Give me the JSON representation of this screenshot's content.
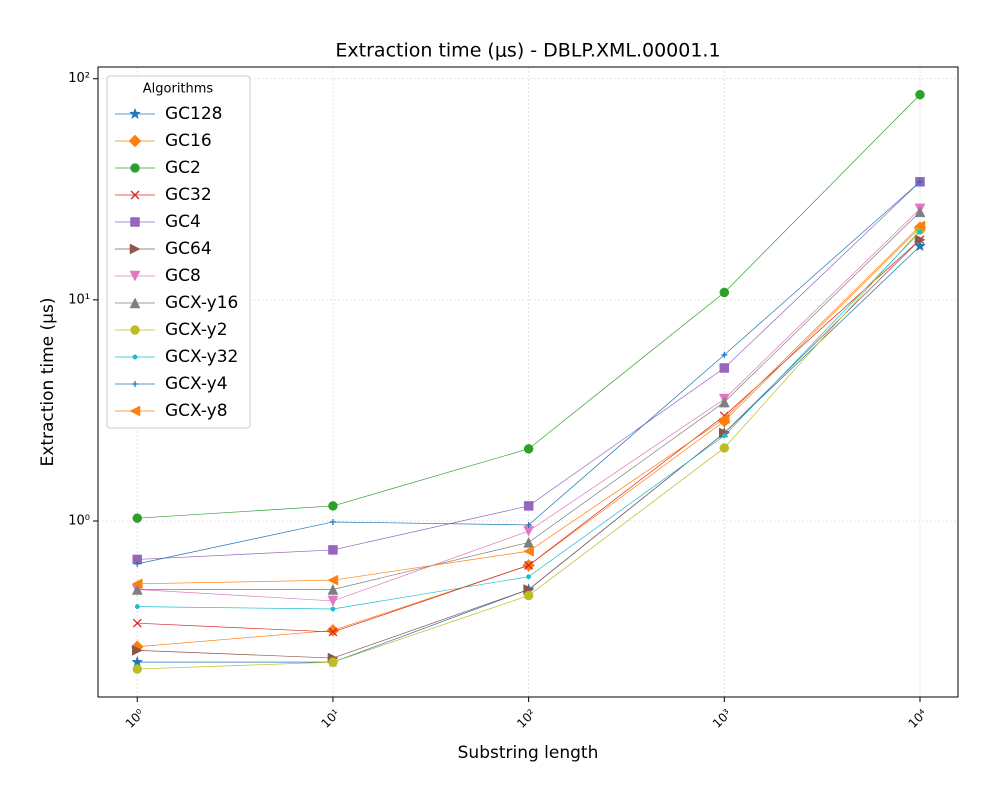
{
  "chart_data": {
    "type": "line",
    "title": "Extraction time (μs) - DBLP.XML.00001.1",
    "x_label": "Substring length",
    "y_label": "Extraction time (μs)",
    "x": [
      1,
      10,
      100,
      1000,
      10000
    ],
    "xlim": [
      0.63,
      15640
    ],
    "ylim": [
      0.16,
      113
    ],
    "xscale": "log",
    "yscale": "log",
    "xticks": [
      {
        "value": 1,
        "label": "10⁰"
      },
      {
        "value": 10,
        "label": "10¹"
      },
      {
        "value": 100,
        "label": "10²"
      },
      {
        "value": 1000,
        "label": "10³"
      },
      {
        "value": 10000,
        "label": "10⁴"
      }
    ],
    "yticks": [
      {
        "value": 1,
        "label": "10⁰"
      },
      {
        "value": 10,
        "label": "10¹"
      },
      {
        "value": 100,
        "label": "10²"
      }
    ],
    "grid": true,
    "legend_title": "Algorithms",
    "legend_loc": "upper left",
    "series": [
      {
        "name": "GC128",
        "color": "#1f77b4",
        "marker": "star",
        "values": [
          0.23,
          0.23,
          0.49,
          2.5,
          17.5
        ]
      },
      {
        "name": "GC16",
        "color": "#ff7f0e",
        "marker": "diamond",
        "values": [
          0.27,
          0.32,
          0.63,
          2.83,
          21.2
        ]
      },
      {
        "name": "GC2",
        "color": "#2ca02c",
        "marker": "circle",
        "values": [
          1.03,
          1.17,
          2.12,
          10.8,
          84.7
        ]
      },
      {
        "name": "GC32",
        "color": "#d62728",
        "marker": "x",
        "values": [
          0.345,
          0.315,
          0.63,
          2.99,
          18.7
        ]
      },
      {
        "name": "GC4",
        "color": "#9467bd",
        "marker": "square",
        "values": [
          0.67,
          0.74,
          1.17,
          4.92,
          34.2
        ]
      },
      {
        "name": "GC64",
        "color": "#8c564b",
        "marker": "triangle-right",
        "values": [
          0.26,
          0.24,
          0.49,
          2.5,
          18.7
        ]
      },
      {
        "name": "GC8",
        "color": "#e377c2",
        "marker": "triangle-down",
        "values": [
          0.49,
          0.435,
          0.9,
          3.56,
          25.8
        ]
      },
      {
        "name": "GCX-y16",
        "color": "#7f7f7f",
        "marker": "triangle-up",
        "values": [
          0.49,
          0.49,
          0.8,
          3.45,
          25
        ]
      },
      {
        "name": "GCX-y2",
        "color": "#bcbd22",
        "marker": "circle",
        "values": [
          0.214,
          0.23,
          0.46,
          2.14,
          20.7
        ]
      },
      {
        "name": "GCX-y32",
        "color": "#17becf",
        "marker": "point",
        "values": [
          0.41,
          0.4,
          0.56,
          2.43,
          20.3
        ]
      },
      {
        "name": "GCX-y4",
        "color": "#1f77b4",
        "marker": "plus",
        "values": [
          0.64,
          0.99,
          0.96,
          5.64,
          34.2
        ]
      },
      {
        "name": "GCX-y8",
        "color": "#ff7f0e",
        "marker": "triangle-left",
        "values": [
          0.52,
          0.54,
          0.73,
          2.9,
          21.6
        ]
      }
    ]
  }
}
